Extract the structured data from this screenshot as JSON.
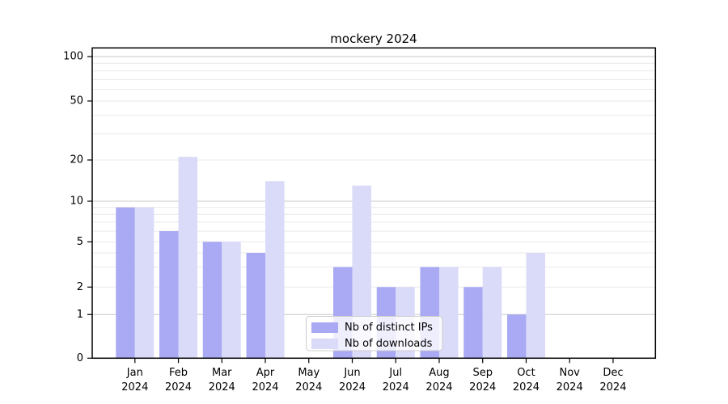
{
  "chart_data": {
    "type": "bar",
    "title": "mockery 2024",
    "categories": [
      "Jan",
      "Feb",
      "Mar",
      "Apr",
      "May",
      "Jun",
      "Jul",
      "Aug",
      "Sep",
      "Oct",
      "Nov",
      "Dec"
    ],
    "x_year_label": "2024",
    "series": [
      {
        "name": "Nb of distinct IPs",
        "color": "#a9a9f4",
        "values": [
          9,
          6,
          5,
          4,
          0,
          3,
          2,
          3,
          2,
          1,
          0,
          0
        ]
      },
      {
        "name": "Nb of downloads",
        "color": "#dadaf9",
        "values": [
          9,
          21,
          5,
          14,
          0,
          13,
          2,
          3,
          3,
          4,
          0,
          0
        ]
      }
    ],
    "y_axis": {
      "scale": "symlog",
      "ylim": [
        0,
        100
      ],
      "tick_labels": [
        "0",
        "1",
        "2",
        "5",
        "10",
        "20",
        "50",
        "100"
      ],
      "major_grid_values": [
        1,
        10,
        100
      ],
      "minor_grid_values": [
        2,
        3,
        4,
        5,
        6,
        7,
        8,
        9,
        20,
        30,
        40,
        50,
        60,
        70,
        80,
        90
      ]
    },
    "legend": {
      "position": "lower-center",
      "entries": [
        "Nb of distinct IPs",
        "Nb of downloads"
      ]
    },
    "colors": {
      "background": "#ffffff",
      "axis": "#000000",
      "major_grid": "#c8c8c8",
      "minor_grid": "#eaeaea",
      "legend_border": "#cccccc",
      "legend_background": "rgba(255,255,255,0.8)"
    },
    "grid": true
  }
}
